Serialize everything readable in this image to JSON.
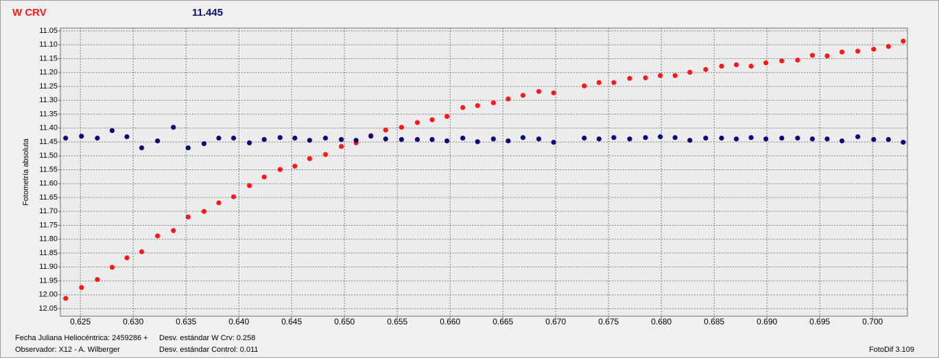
{
  "chart_data": {
    "type": "scatter",
    "title": "W CRV",
    "subtitle": "11.445",
    "ylabel": "Fotometría absoluta",
    "footer": {
      "left": [
        "Fecha Juliana Heliocéntrica: 2459286 +",
        "Observador: X12 - A. Wilberger"
      ],
      "middle": [
        "Desv. estándar W Crv: 0.258",
        "Desv. estándar Control: 0.011"
      ],
      "right": "FotoDif 3.109"
    },
    "xlim": [
      0.6231,
      0.7033
    ],
    "ylim": [
      11.04,
      12.077
    ],
    "y_inverted": true,
    "grid": true,
    "xticks": [
      0.625,
      {
        "value": 0.63,
        "label": "0.630"
      },
      0.635,
      {
        "value": 0.64,
        "label": "0.640"
      },
      0.645,
      {
        "value": 0.65,
        "label": "0.650"
      },
      0.655,
      {
        "value": 0.66,
        "label": "0.660"
      },
      0.665,
      {
        "value": 0.67,
        "label": "0.670"
      },
      0.675,
      {
        "value": 0.68,
        "label": "0.680"
      },
      0.685,
      {
        "value": 0.69,
        "label": "0.690"
      },
      0.695,
      {
        "value": 0.7,
        "label": "0.700"
      }
    ],
    "yticks": [
      11.05,
      {
        "value": 11.1,
        "label": "11.10"
      },
      11.15,
      {
        "value": 11.2,
        "label": "11.20"
      },
      11.25,
      {
        "value": 11.3,
        "label": "11.30"
      },
      11.35,
      {
        "value": 11.4,
        "label": "11.40"
      },
      11.45,
      {
        "value": 11.5,
        "label": "11.50"
      },
      11.55,
      {
        "value": 11.6,
        "label": "11.60"
      },
      11.65,
      {
        "value": 11.7,
        "label": "11.70"
      },
      11.75,
      {
        "value": 11.8,
        "label": "11.80"
      },
      11.85,
      {
        "value": 11.9,
        "label": "11.90"
      },
      11.95,
      {
        "value": 12,
        "label": "12.00"
      },
      12.05
    ],
    "x": [
      0.6236,
      0.6251,
      0.6266,
      0.628,
      0.6294,
      0.6308,
      0.6323,
      0.6338,
      0.6352,
      0.6367,
      0.6381,
      0.6395,
      0.641,
      0.6424,
      0.6439,
      0.6453,
      0.6467,
      0.6482,
      0.6497,
      0.6511,
      0.6525,
      0.6539,
      0.6554,
      0.6569,
      0.6583,
      0.6597,
      0.6612,
      0.6626,
      0.6641,
      0.6655,
      0.6669,
      0.6684,
      0.6698,
      0.6727,
      0.6741,
      0.6755,
      0.677,
      0.6785,
      0.6799,
      0.6813,
      0.6827,
      0.6842,
      0.6857,
      0.6871,
      0.6885,
      0.6899,
      0.6914,
      0.6929,
      0.6943,
      0.6957,
      0.6971,
      0.6986,
      0.7001,
      0.7015,
      0.7029
    ],
    "series": [
      {
        "color": "#ff1a1a",
        "values": [
          12.013,
          11.974,
          11.945,
          11.901,
          11.867,
          11.845,
          11.788,
          11.769,
          11.72,
          11.7,
          11.669,
          11.647,
          11.607,
          11.576,
          11.549,
          11.537,
          11.51,
          11.495,
          11.466,
          11.453,
          11.427,
          11.407,
          11.397,
          11.38,
          11.37,
          11.358,
          11.326,
          11.319,
          11.309,
          11.295,
          11.282,
          11.268,
          11.273,
          11.248,
          11.236,
          11.236,
          11.221,
          11.219,
          11.211,
          11.211,
          11.199,
          11.189,
          11.177,
          11.172,
          11.177,
          11.165,
          11.158,
          11.155,
          11.138,
          11.14,
          11.126,
          11.123,
          11.116,
          11.106,
          11.087
        ]
      },
      {
        "color": "#0a0a78",
        "values": [
          11.436,
          11.429,
          11.436,
          11.409,
          11.431,
          11.471,
          11.446,
          11.397,
          11.471,
          11.456,
          11.436,
          11.436,
          11.453,
          11.441,
          11.434,
          11.436,
          11.444,
          11.436,
          11.441,
          11.444,
          11.429,
          11.439,
          11.441,
          11.441,
          11.441,
          11.446,
          11.436,
          11.449,
          11.439,
          11.446,
          11.434,
          11.439,
          11.451,
          11.436,
          11.439,
          11.434,
          11.439,
          11.434,
          11.431,
          11.434,
          11.444,
          11.436,
          11.436,
          11.439,
          11.434,
          11.439,
          11.436,
          11.436,
          11.439,
          11.439,
          11.446,
          11.431,
          11.441,
          11.441,
          11.451
        ]
      }
    ]
  }
}
